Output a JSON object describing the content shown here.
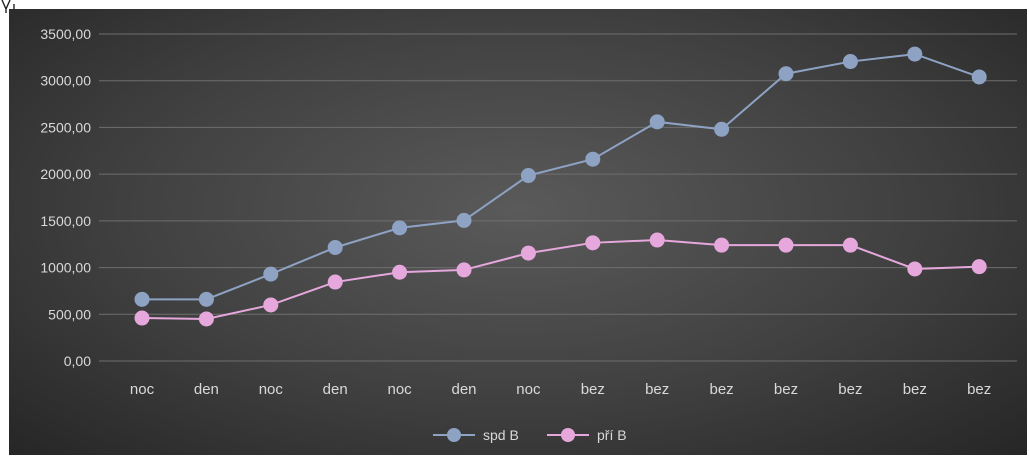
{
  "chart_data": {
    "type": "line",
    "categories": [
      "noc",
      "den",
      "noc",
      "den",
      "noc",
      "den",
      "noc",
      "bez",
      "bez",
      "bez",
      "bez",
      "bez",
      "bez",
      "bez"
    ],
    "ylim": [
      0,
      3500
    ],
    "yticks": [
      "0,00",
      "500,00",
      "1000,00",
      "1500,00",
      "2000,00",
      "2500,00",
      "3000,00",
      "3500,00"
    ],
    "grid": true,
    "legend_position": "bottom",
    "series": [
      {
        "name": "spd B",
        "color": "#8ea3c4",
        "values": [
          660,
          660,
          930,
          1215,
          1425,
          1505,
          1985,
          2160,
          2560,
          2480,
          3075,
          3205,
          3285,
          3040
        ]
      },
      {
        "name": "pří B",
        "color": "#e6a8dc",
        "values": [
          460,
          450,
          600,
          845,
          950,
          975,
          1155,
          1265,
          1295,
          1240,
          1240,
          1240,
          985,
          1010
        ]
      }
    ]
  }
}
